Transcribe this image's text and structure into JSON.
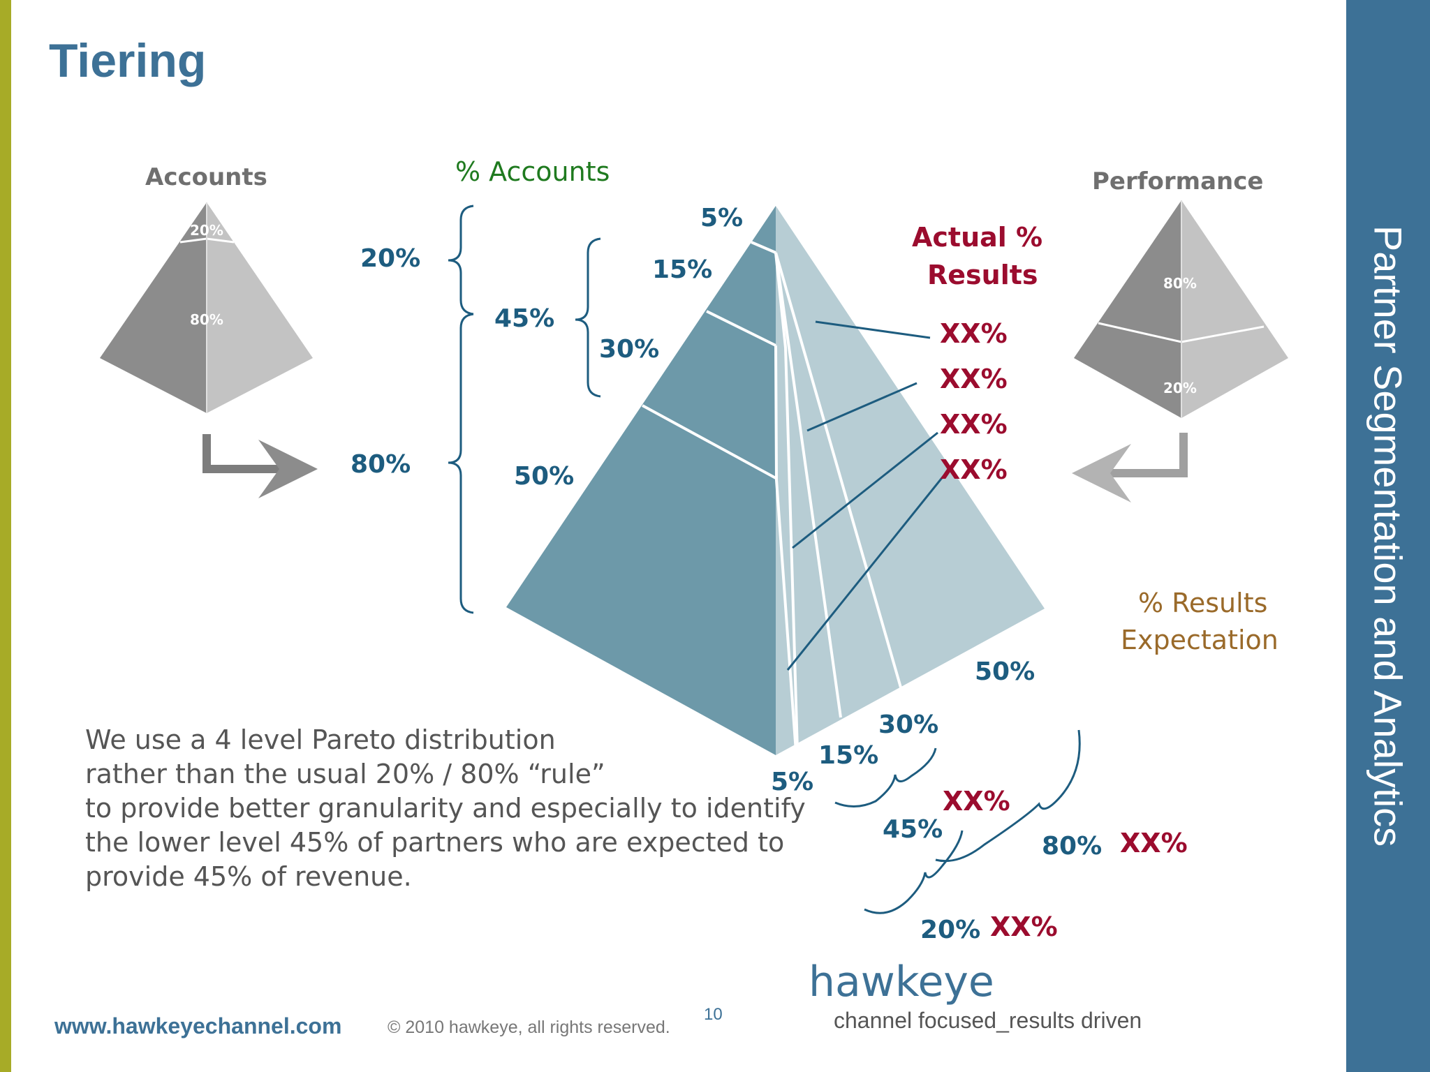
{
  "slide": {
    "title": "Tiering",
    "side_title": "Partner Segmentation and Analytics",
    "page_number": "10"
  },
  "left_pyramid": {
    "label": "Accounts",
    "top_pct": "20%",
    "bottom_pct": "80%"
  },
  "right_pyramid": {
    "label": "Performance",
    "top_pct": "80%",
    "bottom_pct": "20%"
  },
  "accounts_side": {
    "heading": "% Accounts",
    "group_20": "20%",
    "group_80": "80%",
    "group_45": "45%",
    "tier_5": "5%",
    "tier_15": "15%",
    "tier_30": "30%",
    "tier_50": "50%"
  },
  "actual_results": {
    "heading_line1": "Actual %",
    "heading_line2": "Results",
    "values": [
      "XX%",
      "XX%",
      "XX%",
      "XX%"
    ]
  },
  "results_expectation": {
    "heading_line1": "% Results",
    "heading_line2": "Expectation",
    "tier_50": "50%",
    "tier_30": "30%",
    "tier_15": "15%",
    "tier_5": "5%",
    "group_45": "45%",
    "group_80": "80%",
    "group_20": "20%",
    "xx_45": "XX%",
    "xx_80": "XX%",
    "xx_20": "XX%"
  },
  "body_text": [
    "We use a 4 level Pareto distribution",
    "rather than the usual 20% / 80% “rule”",
    "to provide better granularity and especially to identify",
    "the lower level 45% of partners who are expected to",
    "provide 45% of revenue."
  ],
  "footer": {
    "url": "www.hawkeyechannel.com",
    "copyright": "© 2010 hawkeye, all rights reserved.",
    "logo": "hawkeye",
    "tagline": "channel focused_results driven"
  },
  "colors": {
    "side_bar": "#3d7196",
    "left_bar": "#a7ab27",
    "pyramid_dark": "#6d99a9",
    "pyramid_light": "#b7cdd4",
    "label_blue": "#1d5c7f",
    "label_red": "#9b0c2e",
    "accounts_green": "#1f7a1f",
    "expectation_brown": "#9a6a2a"
  }
}
